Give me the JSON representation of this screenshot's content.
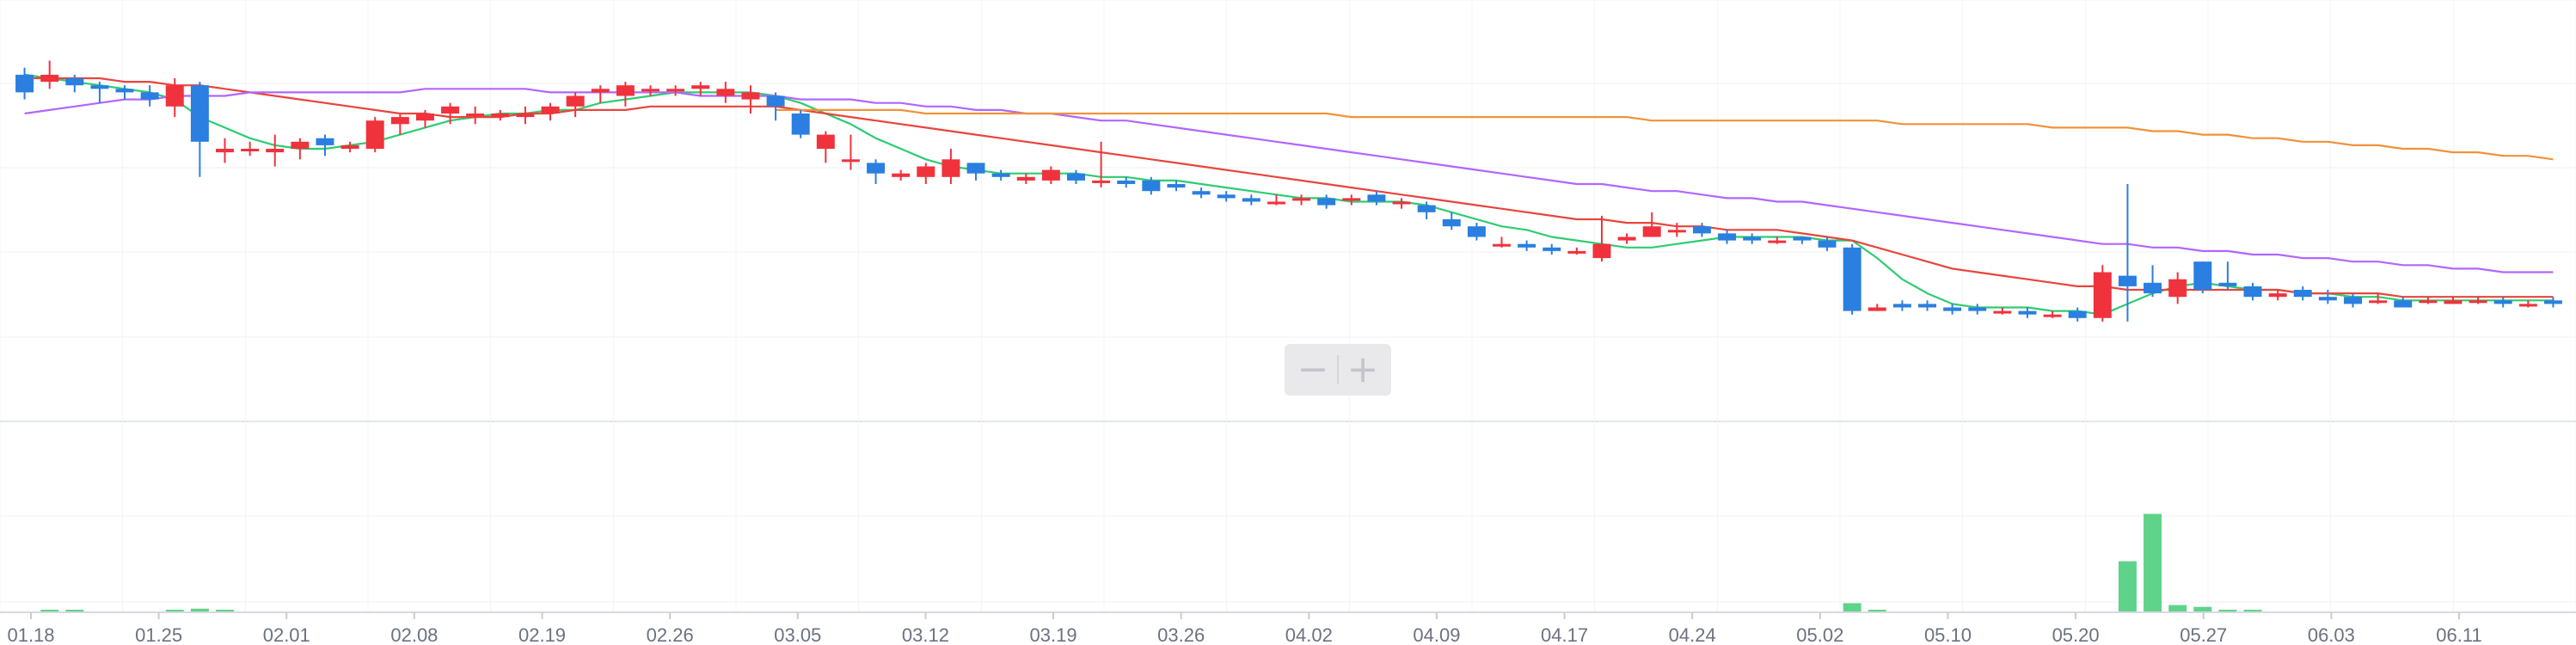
{
  "chart_data": {
    "type": "candlestick",
    "upColor": "#f0323c",
    "downColor": "#2a7fe0",
    "volumeColor": "#5fd38a",
    "maColors": [
      "#2ecc71",
      "#e8453c",
      "#b266ff",
      "#f0923a"
    ],
    "x_ticks": [
      "01.18",
      "01.25",
      "02.01",
      "02.08",
      "02.19",
      "02.26",
      "03.05",
      "03.12",
      "03.19",
      "03.26",
      "04.02",
      "04.09",
      "04.17",
      "04.24",
      "05.02",
      "05.10",
      "05.20",
      "05.27",
      "06.03",
      "06.11"
    ],
    "price_range": [
      0,
      100
    ],
    "volume_range": [
      0,
      100
    ],
    "candles": [
      [
        91,
        86,
        93,
        84
      ],
      [
        89,
        91,
        95,
        87
      ],
      [
        90,
        88,
        91,
        86
      ],
      [
        88,
        87,
        89,
        83
      ],
      [
        87,
        86,
        88,
        84
      ],
      [
        86,
        84,
        88,
        82
      ],
      [
        82,
        88,
        90,
        79
      ],
      [
        88,
        72,
        89,
        62
      ],
      [
        69,
        70,
        73,
        66
      ],
      [
        70,
        70,
        72,
        68
      ],
      [
        69,
        70,
        74,
        65
      ],
      [
        70,
        72,
        73,
        67
      ],
      [
        73,
        71,
        74,
        68
      ],
      [
        70,
        71,
        72,
        69
      ],
      [
        70,
        78,
        79,
        69
      ],
      [
        77,
        79,
        80,
        74
      ],
      [
        78,
        80,
        81,
        76
      ],
      [
        80,
        82,
        83,
        77
      ],
      [
        80,
        80,
        82,
        77
      ],
      [
        79,
        80,
        81,
        78
      ],
      [
        79,
        80,
        82,
        77
      ],
      [
        80,
        82,
        83,
        78
      ],
      [
        82,
        85,
        86,
        79
      ],
      [
        86,
        87,
        88,
        83
      ],
      [
        85,
        88,
        89,
        82
      ],
      [
        87,
        87,
        88,
        85
      ],
      [
        87,
        87,
        88,
        85
      ],
      [
        87,
        88,
        89,
        85
      ],
      [
        85,
        87,
        89,
        83
      ],
      [
        84,
        86,
        88,
        80
      ],
      [
        85,
        82,
        86,
        78
      ],
      [
        80,
        74,
        81,
        73
      ],
      [
        70,
        74,
        75,
        66
      ],
      [
        67,
        67,
        74,
        64
      ],
      [
        66,
        63,
        67,
        60
      ],
      [
        62,
        63,
        64,
        61
      ],
      [
        62,
        65,
        66,
        60
      ],
      [
        62,
        67,
        70,
        60
      ],
      [
        66,
        63,
        66,
        61
      ],
      [
        63,
        62,
        64,
        61
      ],
      [
        61,
        62,
        63,
        60
      ],
      [
        61,
        64,
        65,
        60
      ],
      [
        63,
        61,
        64,
        60
      ],
      [
        61,
        61,
        72,
        59
      ],
      [
        61,
        60,
        62,
        59
      ],
      [
        61,
        58,
        62,
        57
      ],
      [
        60,
        59,
        61,
        58
      ],
      [
        58,
        57,
        59,
        56
      ],
      [
        57,
        56,
        58,
        55
      ],
      [
        56,
        55,
        57,
        54
      ],
      [
        55,
        55,
        57,
        54
      ],
      [
        56,
        56,
        57,
        54
      ],
      [
        56,
        54,
        57,
        53
      ],
      [
        56,
        56,
        57,
        54
      ],
      [
        57,
        55,
        58,
        54
      ],
      [
        55,
        55,
        56,
        53
      ],
      [
        54,
        52,
        55,
        50
      ],
      [
        50,
        48,
        52,
        47
      ],
      [
        48,
        45,
        49,
        44
      ],
      [
        43,
        43,
        45,
        42
      ],
      [
        43,
        42,
        44,
        41
      ],
      [
        42,
        41,
        43,
        40
      ],
      [
        41,
        41,
        42,
        40
      ],
      [
        39,
        43,
        51,
        38
      ],
      [
        44,
        45,
        46,
        43
      ],
      [
        45,
        48,
        52,
        45
      ],
      [
        47,
        47,
        49,
        45
      ],
      [
        48,
        46,
        49,
        45
      ],
      [
        46,
        44,
        47,
        43
      ],
      [
        45,
        44,
        46,
        43
      ],
      [
        44,
        44,
        45,
        43
      ],
      [
        45,
        44,
        45,
        43
      ],
      [
        44,
        42,
        45,
        41
      ],
      [
        42,
        24,
        43,
        23
      ],
      [
        24,
        25,
        26,
        24
      ],
      [
        26,
        25,
        27,
        24
      ],
      [
        26,
        25,
        27,
        24
      ],
      [
        25,
        24,
        26,
        23
      ],
      [
        25,
        24,
        26,
        23
      ],
      [
        24,
        24,
        25,
        23
      ],
      [
        24,
        23,
        25,
        22
      ],
      [
        23,
        23,
        24,
        22
      ],
      [
        24,
        22,
        25,
        21
      ],
      [
        22,
        35,
        37,
        21
      ],
      [
        34,
        31,
        60,
        21
      ],
      [
        32,
        29,
        37,
        28
      ],
      [
        28,
        33,
        35,
        26
      ],
      [
        38,
        30,
        38,
        29
      ],
      [
        32,
        31,
        38,
        30
      ],
      [
        31,
        28,
        32,
        27
      ],
      [
        28,
        29,
        30,
        27
      ],
      [
        30,
        28,
        31,
        27
      ],
      [
        28,
        27,
        30,
        26
      ],
      [
        28,
        26,
        29,
        25
      ],
      [
        27,
        27,
        29,
        26
      ],
      [
        27,
        25,
        28,
        25
      ],
      [
        27,
        27,
        28,
        26
      ],
      [
        26,
        27,
        28,
        26
      ],
      [
        27,
        27,
        28,
        26
      ],
      [
        27,
        26,
        28,
        25
      ],
      [
        26,
        26,
        27,
        25
      ],
      [
        27,
        26,
        28,
        25
      ]
    ],
    "ma_lines": [
      [
        91,
        90,
        89,
        88,
        87,
        86,
        84,
        79,
        76,
        73,
        71,
        70,
        70,
        71,
        72,
        74,
        76,
        78,
        79,
        80,
        80,
        81,
        81,
        83,
        84,
        85,
        86,
        86,
        86,
        86,
        85,
        83,
        80,
        77,
        73,
        70,
        67,
        65,
        64,
        63,
        63,
        63,
        63,
        62,
        62,
        61,
        61,
        60,
        59,
        58,
        57,
        56,
        56,
        55,
        55,
        55,
        54,
        52,
        50,
        48,
        47,
        45,
        44,
        43,
        42,
        42,
        43,
        44,
        45,
        45,
        45,
        45,
        44,
        44,
        39,
        33,
        29,
        26,
        25,
        25,
        25,
        24,
        24,
        23,
        26,
        29,
        31,
        32,
        31,
        30,
        30,
        29,
        29,
        28,
        28,
        27,
        27,
        27,
        27,
        27,
        27,
        27
      ],
      [
        90,
        90,
        90,
        90,
        89,
        89,
        88,
        88,
        87,
        86,
        85,
        84,
        83,
        82,
        81,
        80,
        80,
        79,
        79,
        79,
        80,
        80,
        81,
        81,
        81,
        82,
        82,
        82,
        82,
        82,
        82,
        81,
        80,
        79,
        78,
        77,
        76,
        75,
        74,
        73,
        72,
        71,
        70,
        69,
        68,
        67,
        66,
        65,
        64,
        63,
        62,
        61,
        60,
        59,
        58,
        57,
        56,
        55,
        54,
        53,
        52,
        51,
        50,
        50,
        49,
        49,
        48,
        48,
        47,
        47,
        47,
        46,
        45,
        44,
        42,
        40,
        38,
        36,
        35,
        34,
        33,
        32,
        31,
        31,
        30,
        30,
        30,
        30,
        30,
        30,
        30,
        29,
        29,
        29,
        29,
        28,
        28,
        28,
        28,
        28,
        28,
        28
      ],
      [
        80,
        81,
        82,
        83,
        84,
        84,
        85,
        85,
        85,
        86,
        86,
        86,
        86,
        86,
        86,
        86,
        87,
        87,
        87,
        87,
        87,
        86,
        86,
        86,
        86,
        86,
        86,
        85,
        85,
        85,
        85,
        84,
        84,
        84,
        83,
        83,
        82,
        82,
        81,
        81,
        80,
        80,
        79,
        78,
        78,
        77,
        76,
        75,
        74,
        73,
        72,
        71,
        70,
        69,
        68,
        67,
        66,
        65,
        64,
        63,
        62,
        61,
        60,
        60,
        59,
        58,
        58,
        57,
        56,
        56,
        55,
        55,
        54,
        53,
        52,
        51,
        50,
        49,
        48,
        47,
        46,
        45,
        44,
        43,
        43,
        42,
        42,
        41,
        41,
        40,
        40,
        39,
        39,
        38,
        38,
        37,
        37,
        36,
        36,
        35,
        35,
        35
      ],
      [
        null,
        null,
        null,
        null,
        null,
        null,
        null,
        null,
        null,
        null,
        null,
        null,
        null,
        null,
        null,
        null,
        null,
        null,
        null,
        null,
        null,
        null,
        null,
        null,
        null,
        null,
        null,
        null,
        null,
        null,
        81,
        81,
        81,
        81,
        81,
        81,
        80,
        80,
        80,
        80,
        80,
        80,
        80,
        80,
        80,
        80,
        80,
        80,
        80,
        80,
        80,
        80,
        80,
        79,
        79,
        79,
        79,
        79,
        79,
        79,
        79,
        79,
        79,
        79,
        79,
        78,
        78,
        78,
        78,
        78,
        78,
        78,
        78,
        78,
        78,
        77,
        77,
        77,
        77,
        77,
        77,
        76,
        76,
        76,
        76,
        75,
        75,
        74,
        74,
        73,
        73,
        72,
        72,
        71,
        71,
        70,
        70,
        69,
        69,
        68,
        68,
        67
      ]
    ],
    "volumes": [
      0,
      1,
      1,
      0,
      0,
      0,
      1,
      2,
      1,
      0,
      0,
      0,
      0,
      0,
      0,
      0,
      0,
      0,
      0,
      0,
      0,
      0,
      0,
      0,
      0,
      0,
      0,
      0,
      0,
      0,
      0,
      0,
      0,
      0,
      0,
      0,
      0,
      0,
      0,
      0,
      0,
      0,
      0,
      0,
      0,
      0,
      0,
      0,
      0,
      0,
      0,
      0,
      0,
      0,
      0,
      0,
      0,
      0,
      0,
      0,
      0,
      0,
      0,
      0,
      0,
      0,
      0,
      0,
      0,
      0,
      0,
      0,
      0,
      5,
      1,
      0,
      0,
      0,
      0,
      0,
      0,
      0,
      0,
      0,
      28,
      54,
      4,
      3,
      1,
      1,
      0,
      0,
      0,
      0,
      0,
      0,
      0,
      0,
      0,
      0,
      0,
      0
    ]
  },
  "controls": {
    "zoom_out": "−",
    "zoom_in": "+"
  }
}
